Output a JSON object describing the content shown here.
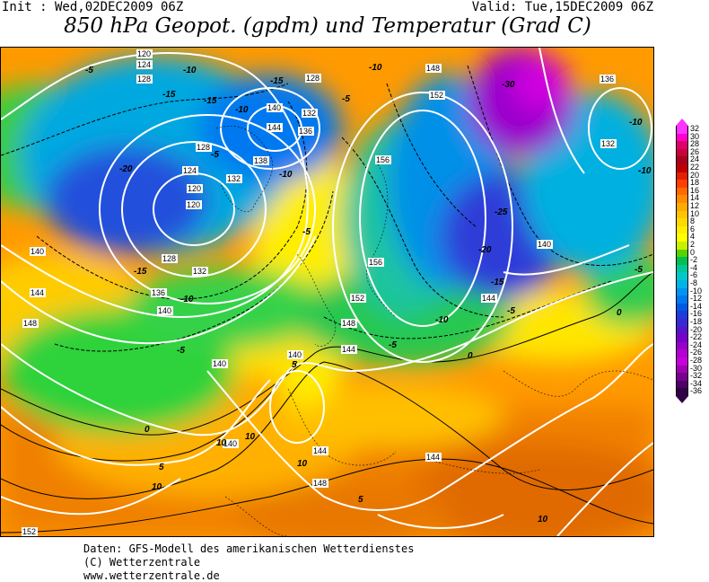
{
  "header": {
    "init": "Init : Wed,02DEC2009 06Z",
    "valid": "Valid: Tue,15DEC2009 06Z",
    "title": "850 hPa Geopot. (gpdm) und Temperatur (Grad C)"
  },
  "legend": {
    "levels": [
      "32",
      "30",
      "28",
      "26",
      "24",
      "22",
      "20",
      "18",
      "16",
      "14",
      "12",
      "10",
      "8",
      "6",
      "4",
      "2",
      "0",
      "-2",
      "-4",
      "-6",
      "-8",
      "-10",
      "-12",
      "-14",
      "-16",
      "-18",
      "-20",
      "-22",
      "-24",
      "-26",
      "-28",
      "-30",
      "-32",
      "-34",
      "-36"
    ],
    "colors": [
      "#ff33ff",
      "#ff00cc",
      "#e0006a",
      "#c8003c",
      "#a8001e",
      "#c00000",
      "#e02000",
      "#ff4000",
      "#ff6a00",
      "#ff8c00",
      "#ffaa00",
      "#ffc400",
      "#ffd800",
      "#ffee00",
      "#ffff00",
      "#c8f000",
      "#5ad200",
      "#00c050",
      "#00c89a",
      "#00c8c8",
      "#00b4e6",
      "#0096f0",
      "#0078f0",
      "#005ae6",
      "#1e3cdc",
      "#3c28d2",
      "#5a14c8",
      "#7800c8",
      "#9600c8",
      "#b400d2",
      "#c800dc",
      "#a000b4",
      "#78008c",
      "#500064",
      "#320046"
    ]
  },
  "geopotential_labels": [
    "120",
    "124",
    "128",
    "128",
    "140",
    "144",
    "132",
    "136",
    "128",
    "124",
    "120",
    "120",
    "128",
    "132",
    "138",
    "132",
    "148",
    "152",
    "156",
    "156",
    "152",
    "148",
    "136",
    "132",
    "140",
    "140",
    "144",
    "148",
    "136",
    "140",
    "140",
    "140",
    "144",
    "144",
    "144",
    "144",
    "148",
    "140",
    "152"
  ],
  "temperature_labels": [
    "-5",
    "-10",
    "-15",
    "-15",
    "-10",
    "-15",
    "-20",
    "-15",
    "-10",
    "-10",
    "-5",
    "-5",
    "-10",
    "-5",
    "-30",
    "-25",
    "-20",
    "-15",
    "-10",
    "-5",
    "-10",
    "-5",
    "-10",
    "-5",
    "0",
    "0",
    "5",
    "0",
    "-5",
    "10",
    "10",
    "5",
    "10",
    "10",
    "5",
    "10"
  ],
  "footer": {
    "line1": "Daten: GFS-Modell des amerikanischen Wetterdienstes",
    "line2": "(C) Wetterzentrale",
    "line3": "www.wetterzentrale.de"
  }
}
